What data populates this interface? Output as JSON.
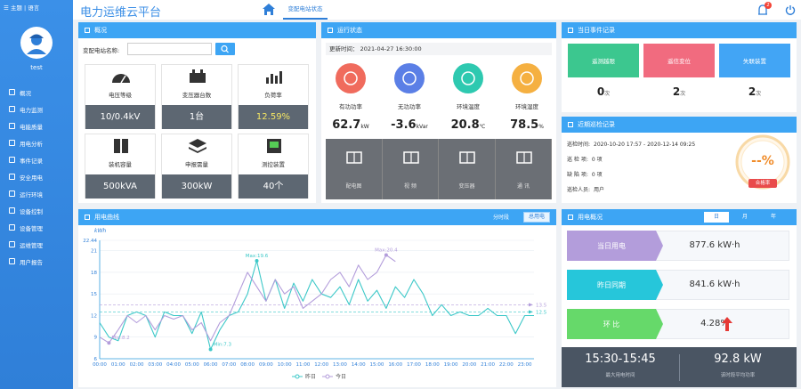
{
  "sidebar": {
    "top_links": "主题 | 语言",
    "user": "test",
    "menu": [
      "概况",
      "电力监测",
      "电能质量",
      "用电分析",
      "事件记录",
      "安全用电",
      "运行环境",
      "设备控制",
      "设备管理",
      "运维管理",
      "用户报告"
    ]
  },
  "header": {
    "title": "电力运维云平台",
    "tab": "变配电站状态",
    "notification_count": "2"
  },
  "overview": {
    "title": "概况",
    "search_label": "变配电站名称:",
    "cards": [
      {
        "label": "电压等级",
        "value": "10/0.4kV"
      },
      {
        "label": "变压器台数",
        "value": "1台"
      },
      {
        "label": "负荷率",
        "value": "12.59%"
      },
      {
        "label": "装机容量",
        "value": "500kVA"
      },
      {
        "label": "申报需量",
        "value": "300kW"
      },
      {
        "label": "测控装置",
        "value": "40个"
      }
    ]
  },
  "status": {
    "title": "运行状态",
    "update_label": "更新时间：",
    "update_time": "2021-04-27 16:30:00",
    "metrics": [
      {
        "label": "有功功率",
        "value": "62.7",
        "unit": "kW",
        "color": "#f06b5d"
      },
      {
        "label": "无功功率",
        "value": "-3.6",
        "unit": "kVar",
        "color": "#5b7fe6"
      },
      {
        "label": "环境温度",
        "value": "20.8",
        "unit": "℃",
        "color": "#2ec9b0"
      },
      {
        "label": "环境湿度",
        "value": "78.5",
        "unit": "%",
        "color": "#f5b041"
      }
    ],
    "tiles": [
      "配电图",
      "视 频",
      "变压器",
      "通 讯"
    ]
  },
  "events": {
    "title": "当日事件记录",
    "items": [
      {
        "label": "遥测越限",
        "count": "0",
        "unit": "次",
        "color": "#3cc78f"
      },
      {
        "label": "遥信变位",
        "count": "2",
        "unit": "次",
        "color": "#f16b7f"
      },
      {
        "label": "失联装置",
        "count": "2",
        "unit": "次",
        "color": "#42a5f5"
      }
    ]
  },
  "inspection": {
    "title": "近期巡检记录",
    "rows": [
      {
        "label": "巡检时间:",
        "value": "2020-10-20 17:57 - 2020-12-14 09:25"
      },
      {
        "label": "巡 检 项:",
        "value": "0 项"
      },
      {
        "label": "缺 陷 项:",
        "value": "0 项"
      },
      {
        "label": "巡检人员:",
        "value": "用户"
      }
    ],
    "rate": "--%",
    "rate_label": "合格率"
  },
  "chart_data": {
    "type": "line",
    "title": "用电曲线",
    "tabs": [
      "分时段",
      "总用电"
    ],
    "y_label": "kWh",
    "categories": [
      "00:00",
      null,
      "01:00",
      null,
      "02:00",
      null,
      "03:00",
      null,
      "04:00",
      null,
      "05:00",
      null,
      "06:00",
      null,
      "07:00",
      null,
      "08:00",
      null,
      "09:00",
      null,
      "10:00",
      null,
      "11:00",
      null,
      "12:00",
      null,
      "13:00",
      null,
      "14:00",
      null,
      "15:00",
      null,
      "16:00",
      null,
      "17:00",
      null,
      "18:00",
      null,
      "19:00",
      null,
      "20:00",
      null,
      "21:00",
      null,
      "22:00",
      null,
      "23:00",
      null
    ],
    "series": [
      {
        "name": "昨日",
        "color": "#3cc8c8",
        "max_label": "Max:19.6",
        "min_label": "Min:7.3",
        "values": [
          11,
          9,
          8.5,
          12,
          12.5,
          12,
          9,
          12.5,
          12,
          12,
          9.5,
          12.5,
          7.3,
          10,
          12,
          12.5,
          15,
          19.6,
          14,
          17,
          13,
          16.5,
          14,
          17,
          15,
          14.5,
          16,
          13.5,
          17,
          14,
          15.5,
          13,
          16,
          14.5,
          17,
          15,
          12,
          13.5,
          12,
          12.5,
          12,
          12,
          13,
          12,
          12,
          9.5,
          12,
          12
        ]
      },
      {
        "name": "今日",
        "color": "#b39ddb",
        "max_label": "Max:20.4",
        "min_label": "Min:8.2",
        "values": [
          9,
          8.2,
          10,
          12,
          11,
          12,
          10,
          12,
          11.5,
          12,
          10,
          11,
          8.5,
          11,
          12,
          15,
          18,
          16,
          14,
          17,
          15,
          16,
          13,
          14,
          15,
          17,
          18,
          16,
          19,
          17,
          18,
          20.4,
          19.5,
          null,
          null,
          null,
          null,
          null,
          null,
          null,
          null,
          null,
          null,
          null,
          null,
          null,
          null,
          null
        ]
      }
    ],
    "reference_lines": [
      {
        "value": 13.5,
        "color": "#b39ddb"
      },
      {
        "value": 12.5,
        "color": "#3cc8c8"
      }
    ],
    "ylim": [
      6,
      22.44
    ],
    "yticks": [
      6,
      9,
      12,
      15,
      18,
      21,
      22.44
    ],
    "grid": true
  },
  "usage_summary": {
    "title": "用电概况",
    "tabs": [
      "日",
      "月",
      "年"
    ],
    "rows": [
      {
        "label": "当日用电",
        "value": "877.6 kW·h",
        "color": "#b39ddb"
      },
      {
        "label": "昨日同期",
        "value": "841.6 kW·h",
        "color": "#26c6da"
      },
      {
        "label": "环 比",
        "value": "4.28%",
        "color": "#66d96a"
      }
    ],
    "peak_time": "15:30-15:45",
    "peak_time_label": "最大用电时间",
    "avg_power": "92.8 kW",
    "avg_power_label": "该时段平均功率"
  }
}
